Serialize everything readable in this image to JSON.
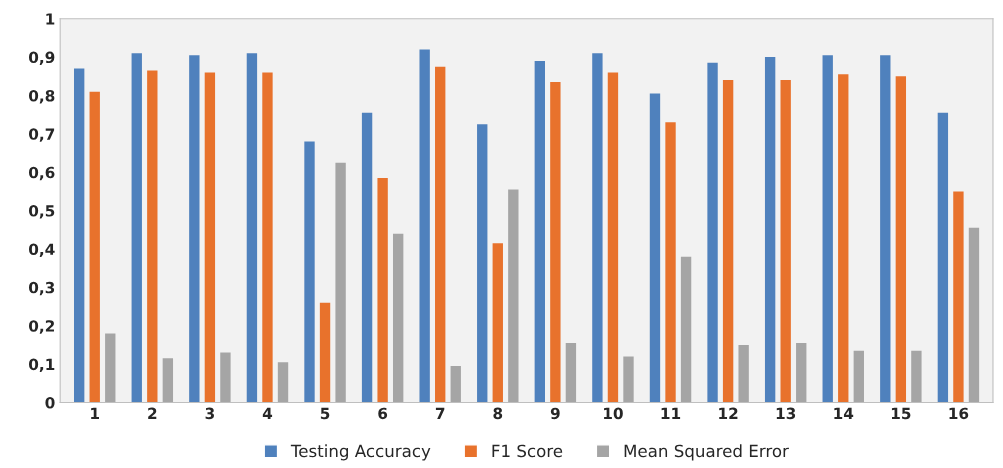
{
  "chart_data": {
    "type": "bar",
    "categories": [
      "1",
      "2",
      "3",
      "4",
      "5",
      "6",
      "7",
      "8",
      "9",
      "10",
      "11",
      "12",
      "13",
      "14",
      "15",
      "16"
    ],
    "series": [
      {
        "name": "Testing Accuracy",
        "color": "#4f81bd",
        "values": [
          0.87,
          0.91,
          0.905,
          0.91,
          0.68,
          0.755,
          0.92,
          0.725,
          0.89,
          0.91,
          0.805,
          0.885,
          0.9,
          0.905,
          0.905,
          0.755
        ]
      },
      {
        "name": "F1 Score",
        "color": "#e8722c",
        "values": [
          0.81,
          0.865,
          0.86,
          0.86,
          0.26,
          0.585,
          0.875,
          0.415,
          0.835,
          0.86,
          0.73,
          0.84,
          0.84,
          0.855,
          0.85,
          0.55
        ]
      },
      {
        "name": "Mean Squared Error",
        "color": "#a5a5a5",
        "values": [
          0.18,
          0.115,
          0.13,
          0.105,
          0.625,
          0.44,
          0.095,
          0.555,
          0.155,
          0.12,
          0.38,
          0.15,
          0.155,
          0.135,
          0.135,
          0.455
        ]
      }
    ],
    "ylim": [
      0,
      1
    ],
    "yticks": [
      0,
      {
        "value": 0.1,
        "label": "0,1"
      },
      {
        "value": 0.2,
        "label": "0,2"
      },
      {
        "value": 0.3,
        "label": "0,3"
      },
      {
        "value": 0.4,
        "label": "0,4"
      },
      {
        "value": 0.5,
        "label": "0,5"
      },
      {
        "value": 0.6,
        "label": "0,6"
      },
      {
        "value": 0.7,
        "label": "0,7"
      },
      {
        "value": 0.8,
        "label": "0,8"
      },
      {
        "value": 0.9,
        "label": "0,9"
      },
      1
    ],
    "legend": "bottom"
  }
}
